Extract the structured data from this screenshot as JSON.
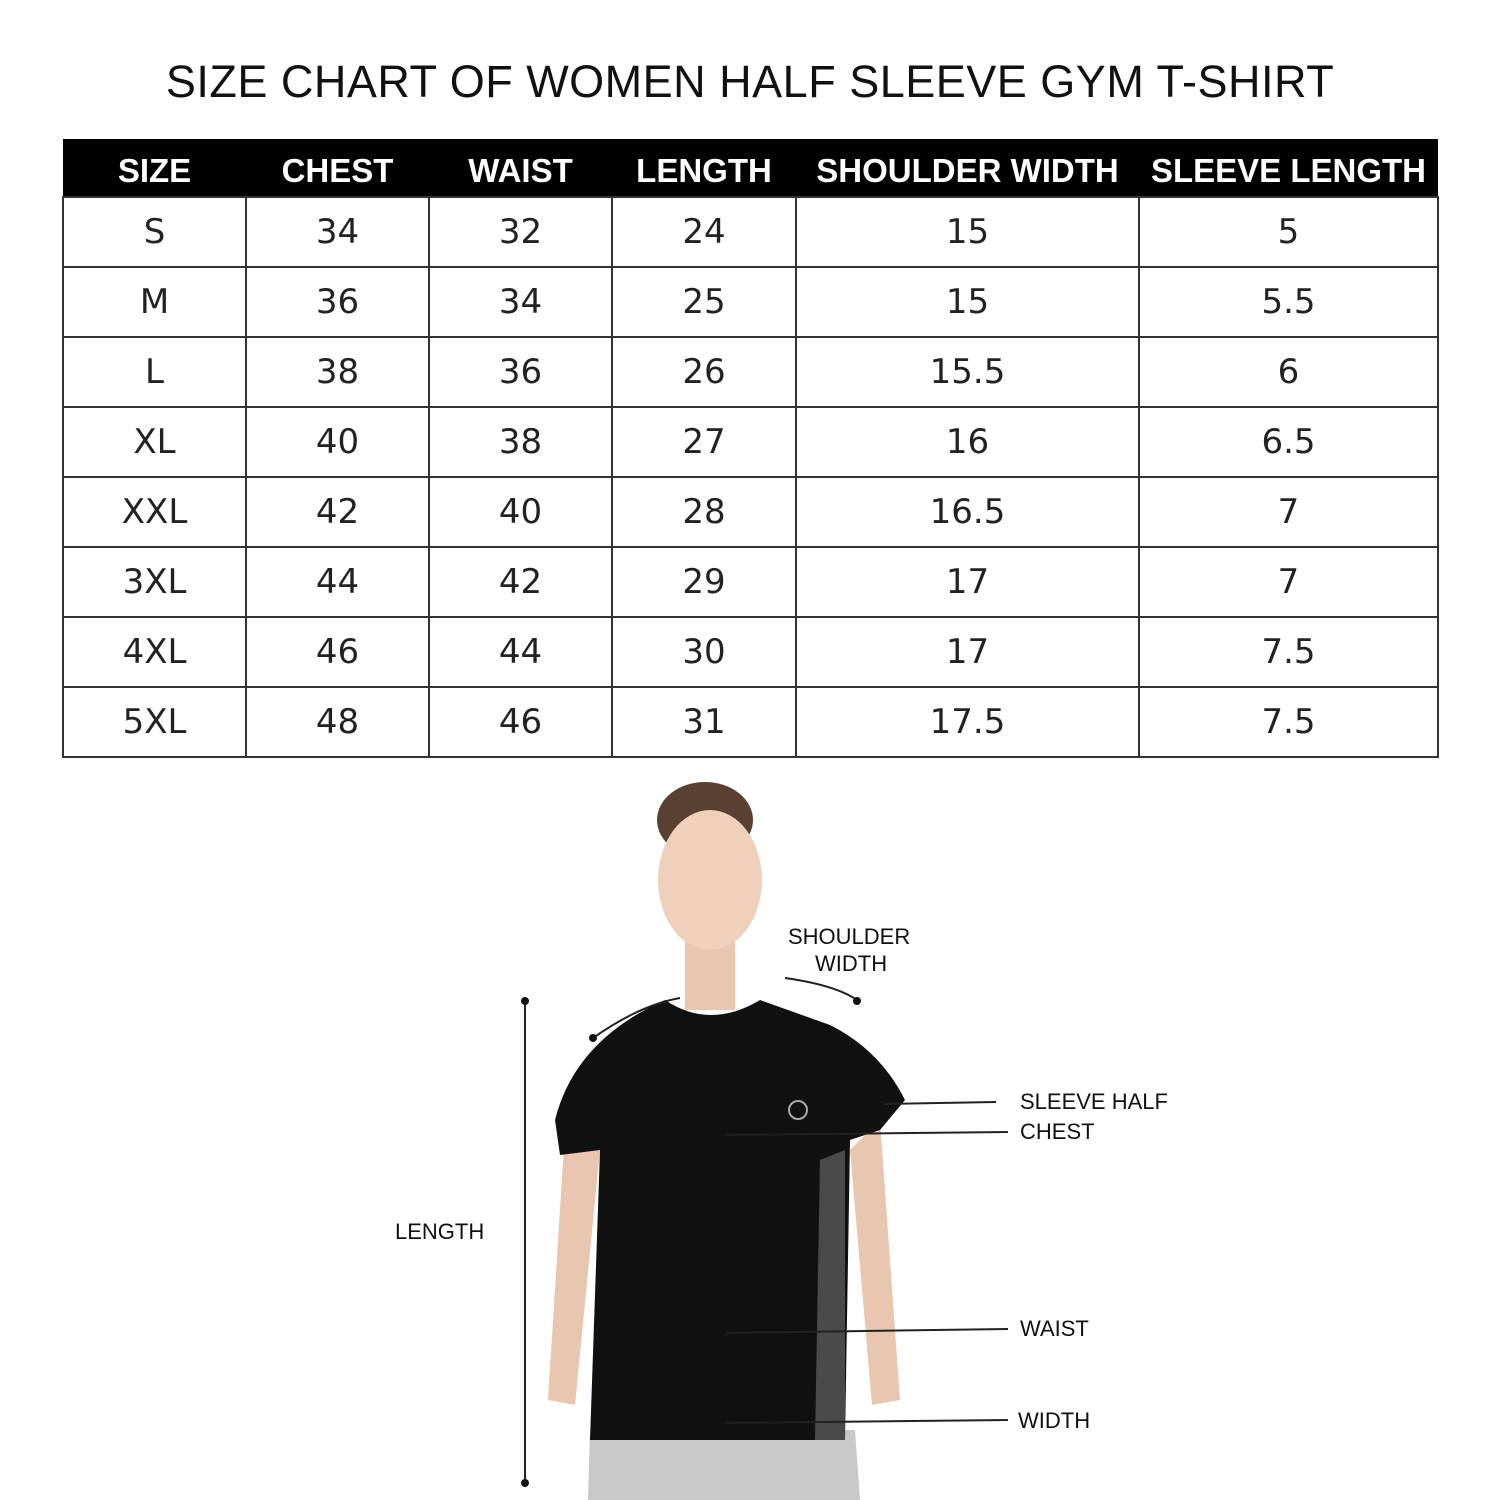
{
  "title": "SIZE CHART OF WOMEN HALF SLEEVE GYM T-SHIRT",
  "table": {
    "headers": [
      "SIZE",
      "CHEST",
      "WAIST",
      "LENGTH",
      "SHOULDER WIDTH",
      "SLEEVE LENGTH"
    ],
    "rows": [
      [
        "S",
        "34",
        "32",
        "24",
        "15",
        "5"
      ],
      [
        "M",
        "36",
        "34",
        "25",
        "15",
        "5.5"
      ],
      [
        "L",
        "38",
        "36",
        "26",
        "15.5",
        "6"
      ],
      [
        "XL",
        "40",
        "38",
        "27",
        "16",
        "6.5"
      ],
      [
        "XXL",
        "42",
        "40",
        "28",
        "16.5",
        "7"
      ],
      [
        "3XL",
        "44",
        "42",
        "29",
        "17",
        "7"
      ],
      [
        "4XL",
        "46",
        "44",
        "30",
        "17",
        "7.5"
      ],
      [
        "5XL",
        "48",
        "46",
        "31",
        "17.5",
        "7.5"
      ]
    ]
  },
  "diagram": {
    "shoulder_line1": "SHOULDER",
    "shoulder_line2": "WIDTH",
    "sleeve": "SLEEVE HALF",
    "chest": "CHEST",
    "length": "LENGTH",
    "waist": "WAIST",
    "width": "WIDTH"
  },
  "colors": {
    "header_bg": "#000000",
    "shirt": "#111111",
    "side_panel": "#4a4a4a",
    "pants": "#c8c8c8"
  }
}
